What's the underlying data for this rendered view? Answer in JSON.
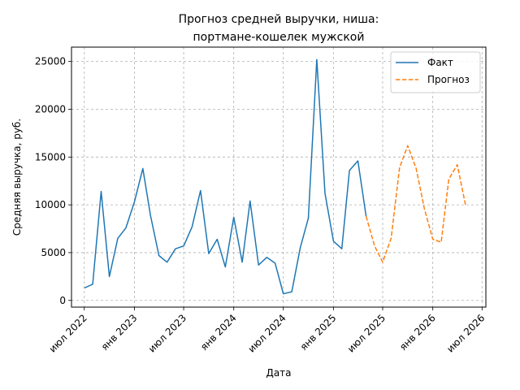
{
  "chart_data": {
    "type": "line",
    "title_lines": [
      "Прогноз средней выручки, ниша:",
      "портмане-кошелек мужской"
    ],
    "xlabel": "Дата",
    "ylabel": "Средняя выручка, руб.",
    "x_range": [
      "2022-05-15",
      "2026-07-15"
    ],
    "ylim": [
      -700,
      26500
    ],
    "x_ticks": [
      {
        "date": "2022-07-01",
        "label": "июл 2022"
      },
      {
        "date": "2023-01-01",
        "label": "янв 2023"
      },
      {
        "date": "2023-07-01",
        "label": "июл 2023"
      },
      {
        "date": "2024-01-01",
        "label": "янв 2024"
      },
      {
        "date": "2024-07-01",
        "label": "июл 2024"
      },
      {
        "date": "2025-01-01",
        "label": "янв 2025"
      },
      {
        "date": "2025-07-01",
        "label": "июл 2025"
      },
      {
        "date": "2026-01-01",
        "label": "янв 2026"
      },
      {
        "date": "2026-07-01",
        "label": "июл 2026"
      }
    ],
    "y_ticks": [
      {
        "value": 0,
        "label": "0"
      },
      {
        "value": 5000,
        "label": "5000"
      },
      {
        "value": 10000,
        "label": "10000"
      },
      {
        "value": 15000,
        "label": "15000"
      },
      {
        "value": 20000,
        "label": "20000"
      },
      {
        "value": 25000,
        "label": "25000"
      }
    ],
    "grid": true,
    "legend_position": "top-right",
    "series": [
      {
        "name": "Факт",
        "color": "#1f77b4",
        "style": "solid",
        "points": [
          [
            "2022-07-01",
            1300
          ],
          [
            "2022-08-01",
            1700
          ],
          [
            "2022-09-01",
            11400
          ],
          [
            "2022-10-01",
            2500
          ],
          [
            "2022-11-01",
            6500
          ],
          [
            "2022-12-01",
            7600
          ],
          [
            "2023-01-01",
            10300
          ],
          [
            "2023-02-01",
            13800
          ],
          [
            "2023-03-01",
            8900
          ],
          [
            "2023-04-01",
            4700
          ],
          [
            "2023-05-01",
            4000
          ],
          [
            "2023-06-01",
            5400
          ],
          [
            "2023-07-01",
            5700
          ],
          [
            "2023-08-01",
            7700
          ],
          [
            "2023-09-01",
            11500
          ],
          [
            "2023-10-01",
            4900
          ],
          [
            "2023-11-01",
            6400
          ],
          [
            "2023-12-01",
            3500
          ],
          [
            "2024-01-01",
            8700
          ],
          [
            "2024-02-01",
            4000
          ],
          [
            "2024-03-01",
            10400
          ],
          [
            "2024-04-01",
            3700
          ],
          [
            "2024-05-01",
            4500
          ],
          [
            "2024-06-01",
            3900
          ],
          [
            "2024-07-01",
            700
          ],
          [
            "2024-08-01",
            900
          ],
          [
            "2024-09-01",
            5500
          ],
          [
            "2024-10-01",
            8600
          ],
          [
            "2024-11-01",
            25200
          ],
          [
            "2024-12-01",
            11200
          ],
          [
            "2025-01-01",
            6200
          ],
          [
            "2025-02-01",
            5400
          ],
          [
            "2025-03-01",
            13600
          ],
          [
            "2025-04-01",
            14600
          ],
          [
            "2025-05-01",
            8800
          ]
        ]
      },
      {
        "name": "Прогноз",
        "color": "#ff7f0e",
        "style": "dashed",
        "points": [
          [
            "2025-05-01",
            8800
          ],
          [
            "2025-06-01",
            5700
          ],
          [
            "2025-07-01",
            4000
          ],
          [
            "2025-08-01",
            6500
          ],
          [
            "2025-09-01",
            13900
          ],
          [
            "2025-10-01",
            16200
          ],
          [
            "2025-11-01",
            13800
          ],
          [
            "2025-12-01",
            9600
          ],
          [
            "2026-01-01",
            6400
          ],
          [
            "2026-02-01",
            6100
          ],
          [
            "2026-03-01",
            12700
          ],
          [
            "2026-04-01",
            14200
          ],
          [
            "2026-05-01",
            10000
          ]
        ]
      }
    ]
  }
}
